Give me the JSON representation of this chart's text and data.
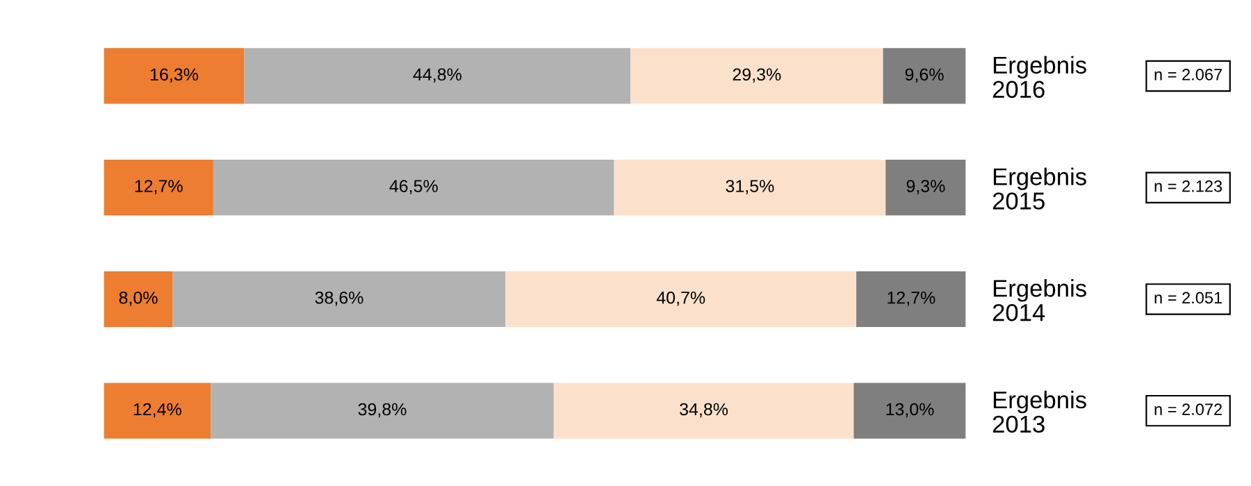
{
  "chart_data": {
    "type": "bar",
    "orientation": "horizontal",
    "stacked": true,
    "categories": [
      "Ergebnis\n2016",
      "Ergebnis\n2015",
      "Ergebnis\n2014",
      "Ergebnis\n2013"
    ],
    "series": [
      {
        "color": "#ed7d31",
        "values": [
          16.3,
          12.7,
          8.0,
          12.4
        ],
        "value_labels": [
          "16,3%",
          "12,7%",
          "8,0%",
          "12,4%"
        ]
      },
      {
        "color": "#b2b2b2",
        "values": [
          44.8,
          46.5,
          38.6,
          39.8
        ],
        "value_labels": [
          "44,8%",
          "46,5%",
          "38,6%",
          "39,8%"
        ]
      },
      {
        "color": "#fbe1cc",
        "values": [
          29.3,
          31.5,
          40.7,
          34.8
        ],
        "value_labels": [
          "29,3%",
          "31,5%",
          "40,7%",
          "34,8%"
        ]
      },
      {
        "color": "#7f7f7f",
        "values": [
          9.6,
          9.3,
          12.7,
          13.0
        ],
        "value_labels": [
          "9,6%",
          "9,3%",
          "12,7%",
          "13,0%"
        ]
      }
    ],
    "annotations": [
      "n = 2.067",
      "n = 2.123",
      "n = 2.051",
      "n = 2.072"
    ],
    "grid": false,
    "tick_labels": "y"
  }
}
